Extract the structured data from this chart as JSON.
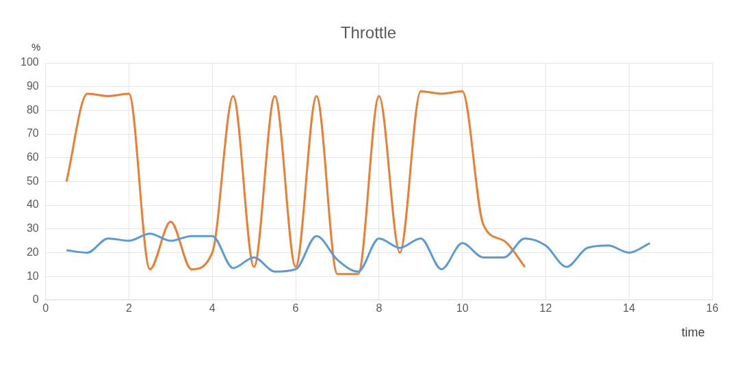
{
  "chart_data": {
    "type": "line",
    "title": "Throttle",
    "xlabel": "time",
    "ylabel": "%",
    "xlim": [
      0,
      16
    ],
    "xticks": [
      0,
      2,
      4,
      6,
      8,
      10,
      12,
      14,
      16
    ],
    "ylim": [
      0,
      100
    ],
    "yticks": [
      0,
      10,
      20,
      30,
      40,
      50,
      60,
      70,
      80,
      90,
      100
    ],
    "grid": true,
    "legend": false,
    "marker": "none",
    "line_style": "solid",
    "series": [
      {
        "color": "#5b9bd5",
        "x": [
          0.5,
          1,
          1.5,
          2,
          2.5,
          3,
          3.5,
          4,
          4.5,
          5,
          5.5,
          6,
          6.5,
          7,
          7.5,
          8,
          8.5,
          9,
          9.5,
          10,
          10.5,
          11,
          11.5,
          12,
          12.5,
          13,
          13.5,
          14,
          14.5
        ],
        "values": [
          21,
          20,
          26,
          25,
          28,
          25,
          27,
          27,
          13.5,
          18,
          12,
          13,
          27,
          17,
          12,
          26,
          22,
          26,
          13,
          24,
          18,
          18,
          26,
          23,
          14,
          22,
          23,
          20,
          24
        ]
      },
      {
        "color": "#ed7d31",
        "x": [
          0.5,
          1,
          1.5,
          2,
          2.5,
          3,
          3.5,
          4,
          4.5,
          5,
          5.5,
          6,
          6.5,
          7,
          7.5,
          8,
          8.5,
          9,
          9.5,
          10,
          10.5,
          11,
          11.5
        ],
        "values": [
          50,
          87,
          86,
          87,
          13,
          33,
          13,
          20,
          86,
          14,
          86,
          14,
          86,
          11,
          11,
          86,
          20,
          88,
          87,
          88,
          32,
          25,
          14
        ]
      }
    ]
  }
}
